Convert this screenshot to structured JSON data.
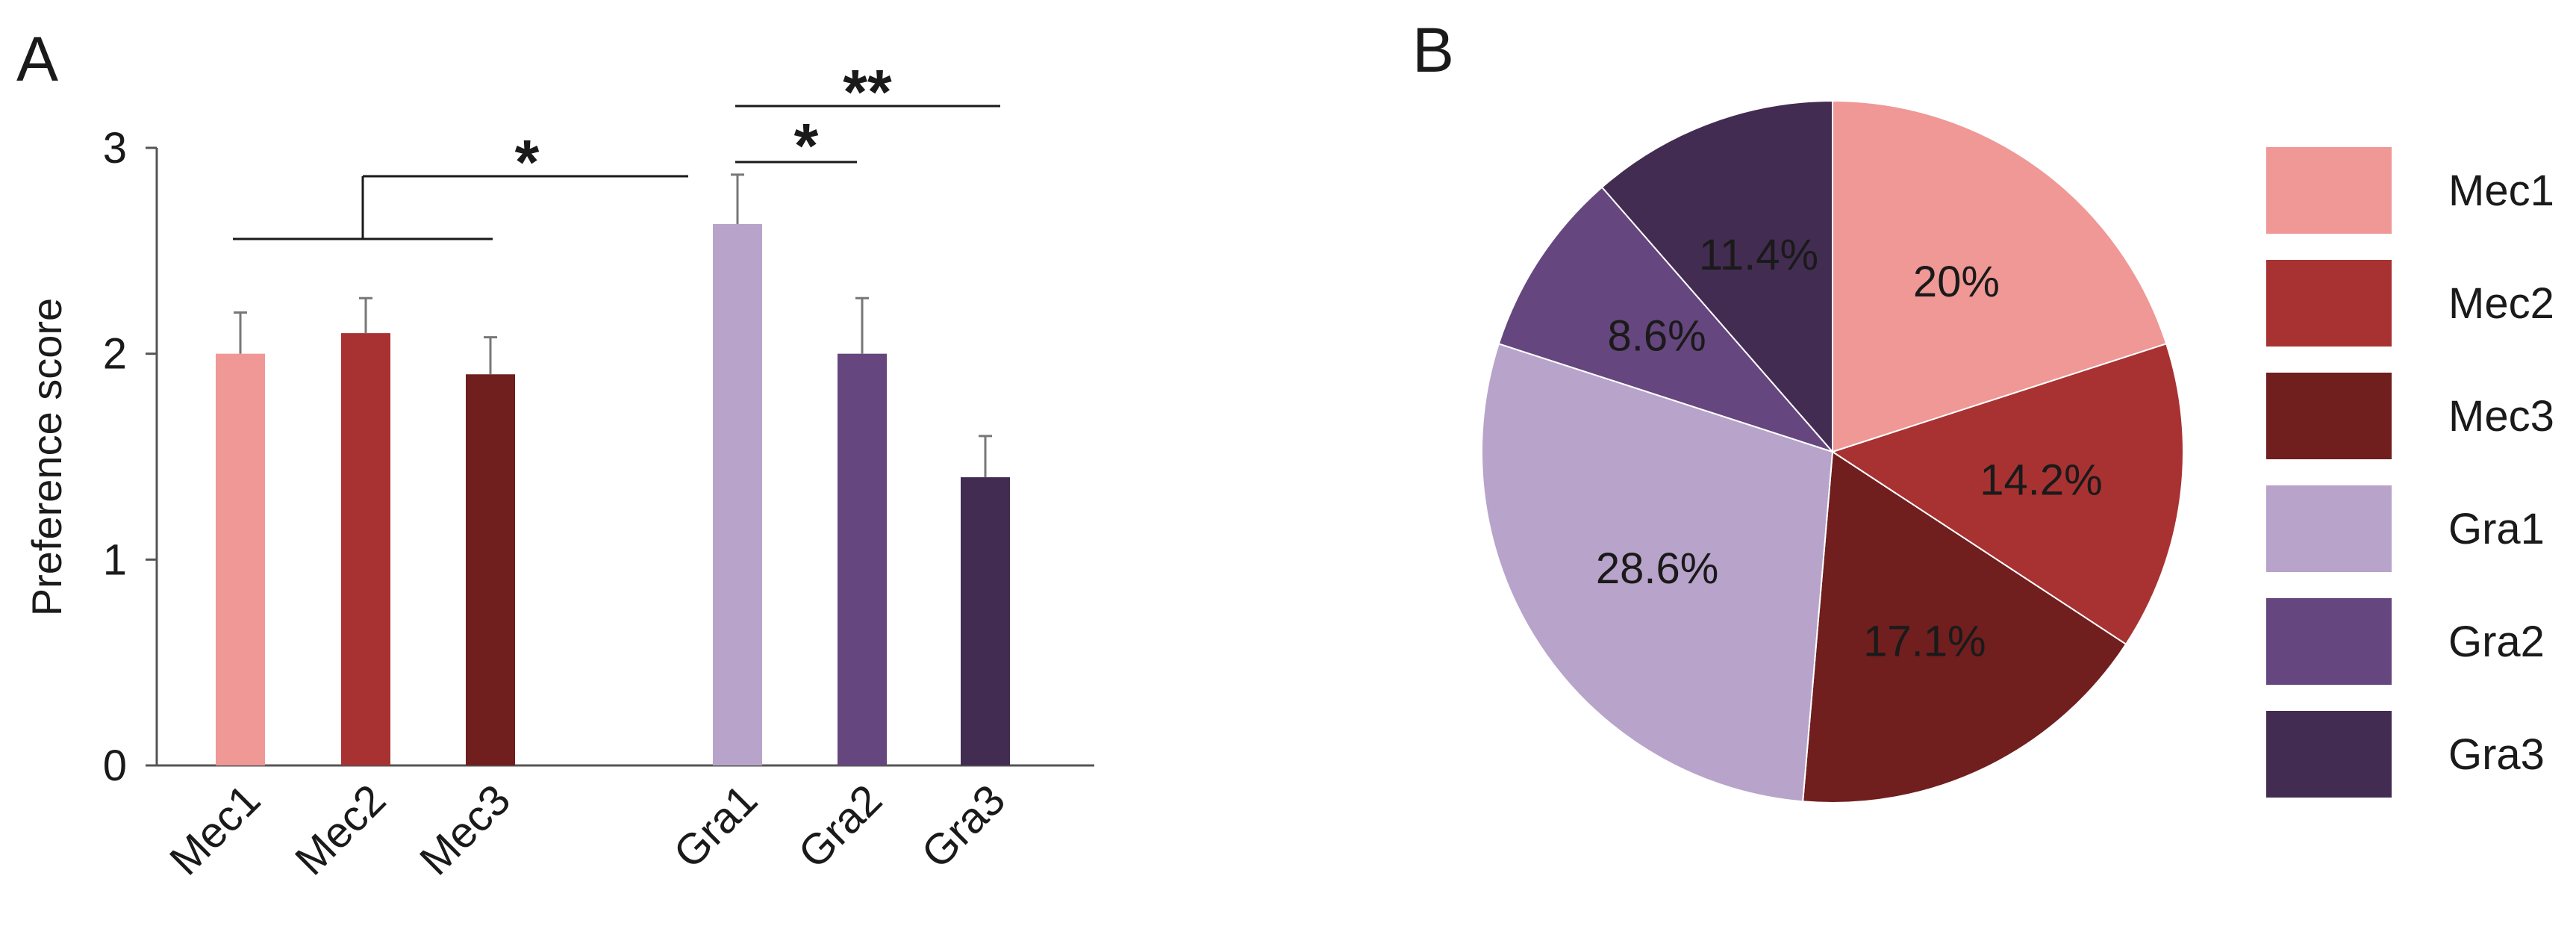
{
  "chart_data": [
    {
      "panel": "A",
      "type": "bar",
      "ylabel": "Preference score",
      "ylim": [
        0,
        3
      ],
      "yticks": [
        0,
        1,
        2,
        3
      ],
      "categories": [
        "Mec1",
        "Mec2",
        "Mec3",
        "Gra1",
        "Gra2",
        "Gra3"
      ],
      "values": [
        2.0,
        2.1,
        1.9,
        2.63,
        2.0,
        1.4
      ],
      "errors": [
        0.2,
        0.17,
        0.18,
        0.24,
        0.27,
        0.2
      ],
      "colors": [
        "#ef9896",
        "#a83232",
        "#701e1e",
        "#b8a3ca",
        "#66467e",
        "#432c52"
      ],
      "significance": [
        {
          "label": "*",
          "from": "Mec1-Mec3",
          "to": "Gra1"
        },
        {
          "label": "*",
          "from": "Gra1",
          "to": "Gra2"
        },
        {
          "label": "**",
          "from": "Gra1",
          "to": "Gra3"
        }
      ]
    },
    {
      "panel": "B",
      "type": "pie",
      "labels": [
        "Mec1",
        "Mec2",
        "Mec3",
        "Gra1",
        "Gra2",
        "Gra3"
      ],
      "values": [
        20,
        14.2,
        17.1,
        28.6,
        8.6,
        11.4
      ],
      "value_labels": [
        "20%",
        "14.2%",
        "17.1%",
        "28.6%",
        "8.6%",
        "11.4%"
      ],
      "colors": [
        "#ef9896",
        "#a83232",
        "#701e1e",
        "#b8a3ca",
        "#66467e",
        "#432c52"
      ]
    }
  ]
}
